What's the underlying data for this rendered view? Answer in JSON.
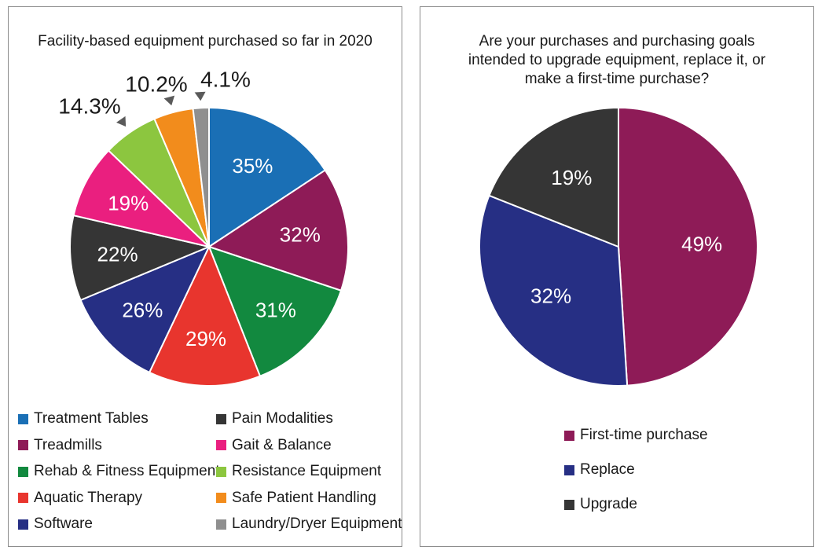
{
  "chart_data": [
    {
      "type": "pie",
      "title": "Facility-based equipment purchased so far in 2020",
      "slices": [
        {
          "label": "Treatment Tables",
          "value": 35,
          "value_label": "35%",
          "color": "#1a6fb5"
        },
        {
          "label": "Treadmills",
          "value": 32,
          "value_label": "32%",
          "color": "#8e1b57"
        },
        {
          "label": "Rehab & Fitness Equipment",
          "value": 31,
          "value_label": "31%",
          "color": "#12893f"
        },
        {
          "label": "Aquatic Therapy",
          "value": 29,
          "value_label": "29%",
          "color": "#e8352e"
        },
        {
          "label": "Software",
          "value": 26,
          "value_label": "26%",
          "color": "#262f84"
        },
        {
          "label": "Pain Modalities",
          "value": 22,
          "value_label": "22%",
          "color": "#353535"
        },
        {
          "label": "Gait & Balance",
          "value": 19,
          "value_label": "19%",
          "color": "#ea1f7f"
        },
        {
          "label": "Resistance Equipment",
          "value": 14.3,
          "value_label": "14.3%",
          "color": "#8cc63f"
        },
        {
          "label": "Safe Patient Handling",
          "value": 10.2,
          "value_label": "10.2%",
          "color": "#f28c1c"
        },
        {
          "label": "Laundry/Dryer Equipment",
          "value": 4.1,
          "value_label": "4.1%",
          "color": "#8f8f8f"
        }
      ],
      "legend_placement": "bottom"
    },
    {
      "type": "pie",
      "title_lines": [
        "Are your purchases and purchasing goals",
        "intended to upgrade equipment, replace it, or",
        "make a first-time purchase?"
      ],
      "slices": [
        {
          "label": "First-time purchase",
          "value": 49,
          "value_label": "49%",
          "color": "#8e1b57"
        },
        {
          "label": "Replace",
          "value": 32,
          "value_label": "32%",
          "color": "#262f84"
        },
        {
          "label": "Upgrade",
          "value": 19,
          "value_label": "19%",
          "color": "#353535"
        }
      ],
      "legend_placement": "bottom"
    }
  ]
}
